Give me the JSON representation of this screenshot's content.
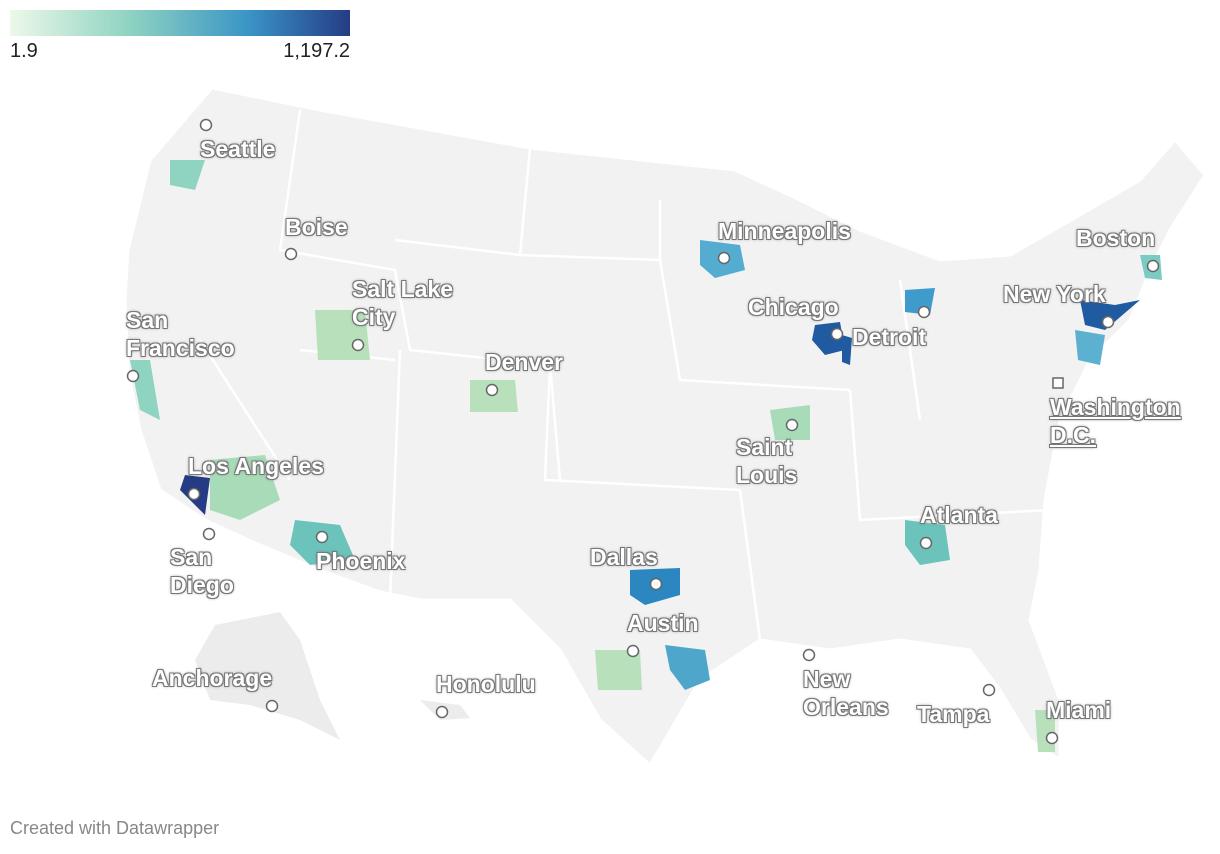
{
  "legend": {
    "min": "1.9",
    "max": "1,197.2"
  },
  "cities": [
    "Seattle",
    "Boise",
    "Salt Lake City",
    "San Francisco",
    "Denver",
    "Los Angeles",
    "San Diego",
    "Phoenix",
    "Minneapolis",
    "Chicago",
    "Detroit",
    "Saint Louis",
    "Dallas",
    "Austin",
    "Atlanta",
    "New Orleans",
    "Tampa",
    "Miami",
    "Boston",
    "New York",
    "Washington D.C.",
    "Anchorage",
    "Honolulu"
  ],
  "footer": "Created with Datawrapper"
}
